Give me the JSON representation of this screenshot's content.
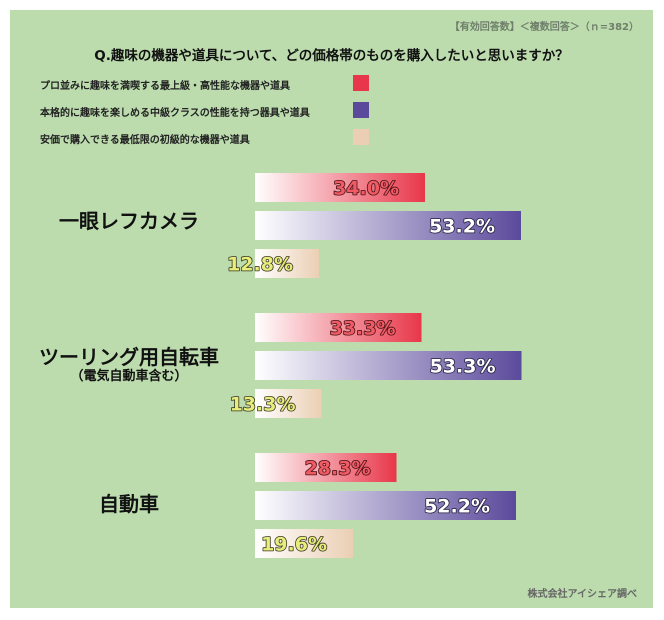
{
  "header": {
    "note": "【有効回答数】＜複数回答＞（ｎ=382）",
    "question": "Q.趣味の機器や道具について、どの価格帯のものを購入したいと思いますか？"
  },
  "legend": [
    {
      "label": "プロ並みに趣味を満喫する最上級・高性能な機器や道具",
      "color": "#e8374a"
    },
    {
      "label": "本格的に趣味を楽しめる中級クラスの性能を持つ器具や道具",
      "color": "#5b4a9c"
    },
    {
      "label": "安価で購入できる最低限の初級的な機器や道具",
      "color": "#ebcfb4"
    }
  ],
  "categories": [
    {
      "label": "一眼レフカメラ",
      "sublabel": ""
    },
    {
      "label": "ツーリング用自転車",
      "sublabel": "（電気自動車含む）"
    },
    {
      "label": "自動車",
      "sublabel": ""
    }
  ],
  "chart_data": {
    "type": "bar",
    "orientation": "horizontal",
    "unit": "%",
    "categories": [
      "一眼レフカメラ",
      "ツーリング用自転車（電気自動車含む）",
      "自動車"
    ],
    "series": [
      {
        "name": "プロ並みに趣味を満喫する最上級・高性能な機器や道具",
        "values": [
          34.0,
          33.3,
          28.3
        ],
        "labels": [
          "34.0%",
          "33.3%",
          "28.3%"
        ]
      },
      {
        "name": "本格的に趣味を楽しめる中級クラスの性能を持つ器具や道具",
        "values": [
          53.2,
          53.3,
          52.2
        ],
        "labels": [
          "53.2%",
          "53.3%",
          "52.2%"
        ]
      },
      {
        "name": "安価で購入できる最低限の初級的な機器や道具",
        "values": [
          12.8,
          13.3,
          19.6
        ],
        "labels": [
          "12.8%",
          "13.3%",
          "19.6%"
        ]
      }
    ],
    "xlim": [
      0,
      100
    ],
    "grid": false,
    "legend": "top-left"
  },
  "footer": {
    "credit": "株式会社アイシェア調べ"
  }
}
